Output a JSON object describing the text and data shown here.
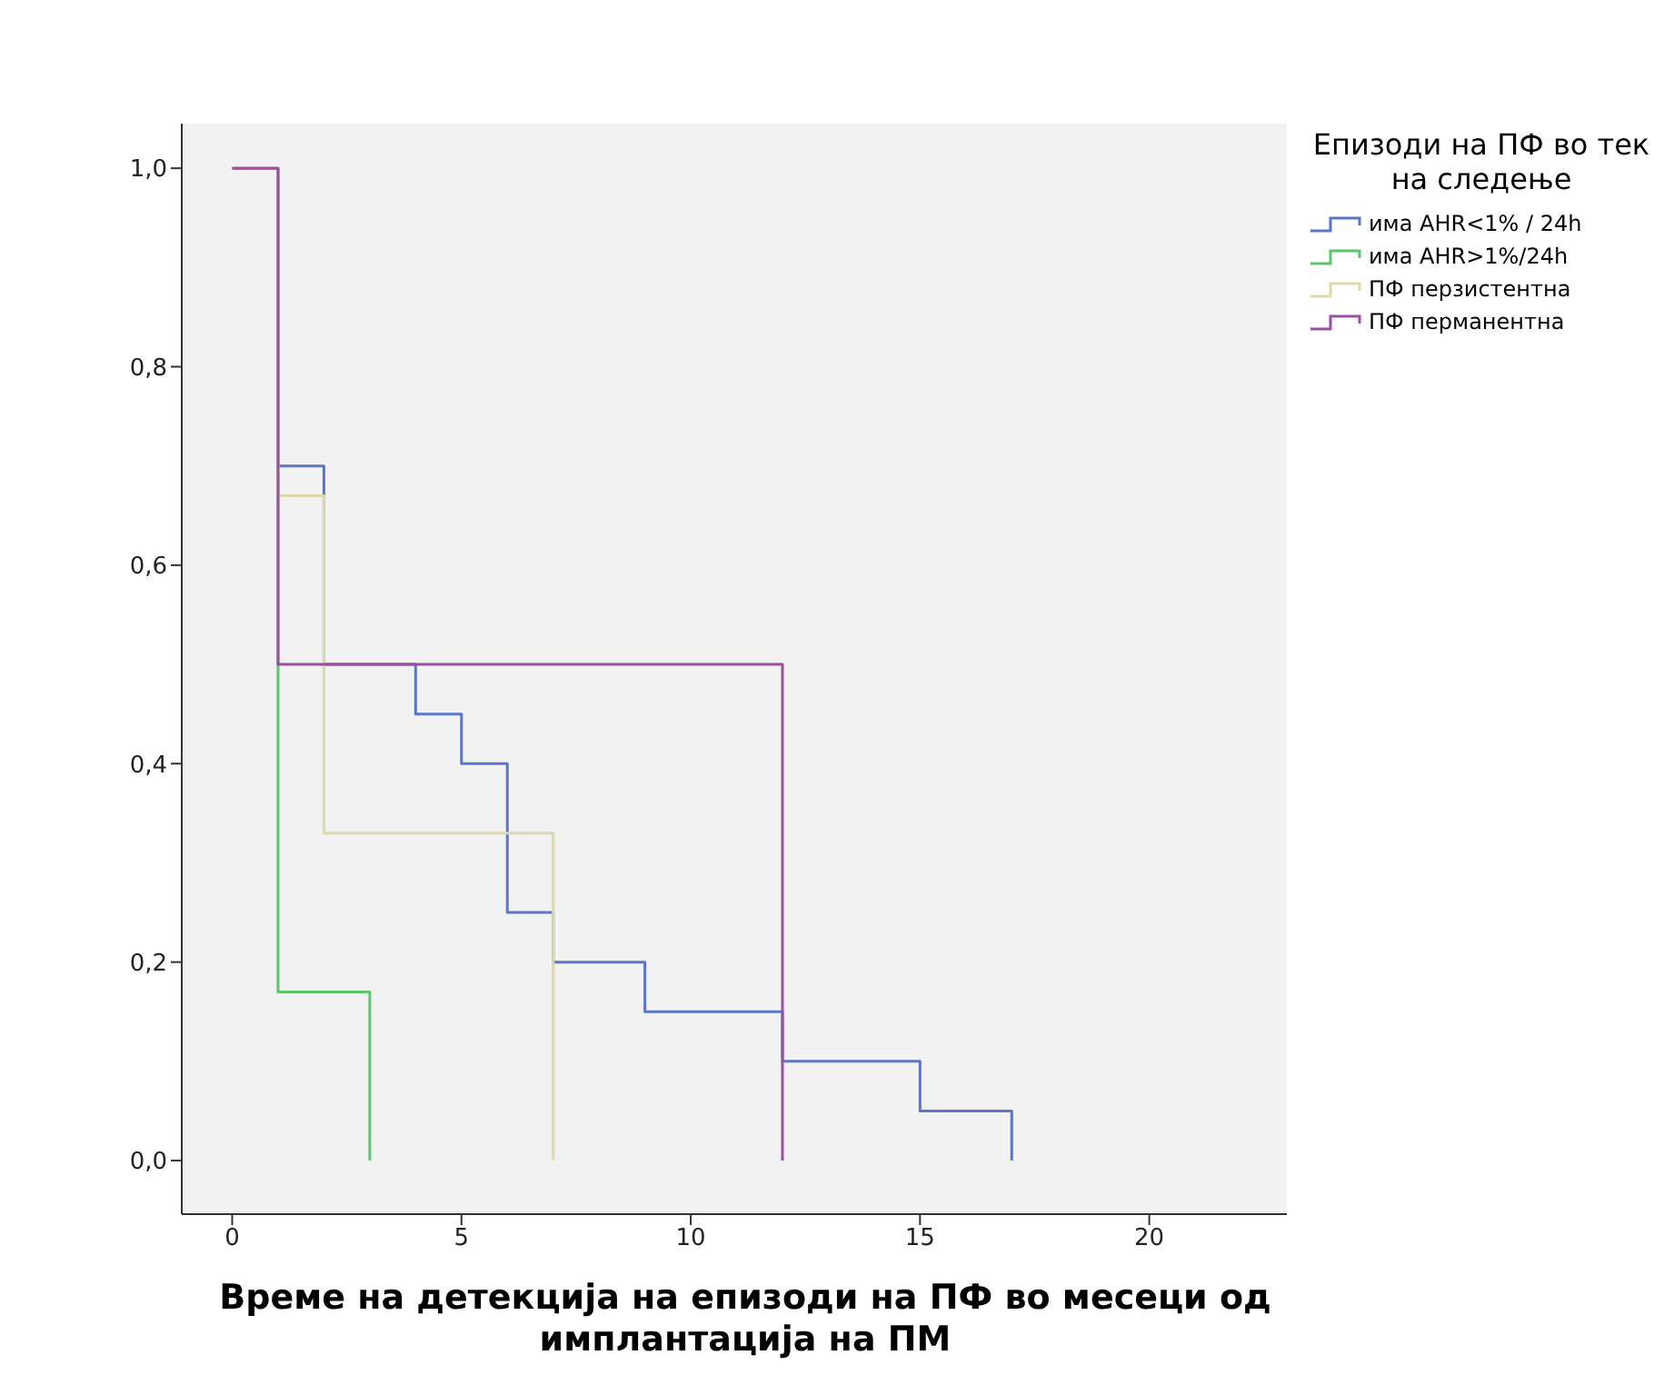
{
  "chart_data": {
    "type": "step",
    "xlabel": "Време на детекција на епизоди на ПФ во месеци од имплантација на ПМ",
    "legend_title": "Епизоди на ПФ во тек на следење",
    "legend": "top right",
    "grid": false,
    "xlim": [
      -1.1,
      23
    ],
    "xticks": [
      0,
      5,
      10,
      15,
      20
    ],
    "ylim": [
      -0.054,
      1.045
    ],
    "yticks": [
      {
        "value": 0,
        "label": "0,0"
      },
      {
        "value": 0.2,
        "label": "0,2"
      },
      {
        "value": 0.4,
        "label": "0,4"
      },
      {
        "value": 0.6,
        "label": "0,6"
      },
      {
        "value": 0.8,
        "label": "0,8"
      },
      {
        "value": 1,
        "label": "1,0"
      }
    ],
    "series": [
      {
        "name": "има AHR<1% / 24h",
        "color": "#5b75c8",
        "x": [
          0,
          1,
          2,
          4,
          5,
          6,
          7,
          9,
          12,
          15,
          17
        ],
        "values": [
          1,
          0.7,
          0.5,
          0.45,
          0.4,
          0.25,
          0.2,
          0.15,
          0.1,
          0.05,
          0
        ]
      },
      {
        "name": "има AHR>1%/24h",
        "color": "#5cc46a",
        "x": [
          0,
          1,
          3
        ],
        "values": [
          1,
          0.17,
          0
        ]
      },
      {
        "name": "ПФ перзистентна",
        "color": "#ddd9a8",
        "x": [
          0,
          1,
          2,
          7
        ],
        "values": [
          1,
          0.67,
          0.33,
          0
        ]
      },
      {
        "name": "ПФ перманентна",
        "color": "#9c4fa0",
        "x": [
          0,
          1,
          12
        ],
        "values": [
          1,
          0.5,
          0
        ]
      }
    ]
  }
}
